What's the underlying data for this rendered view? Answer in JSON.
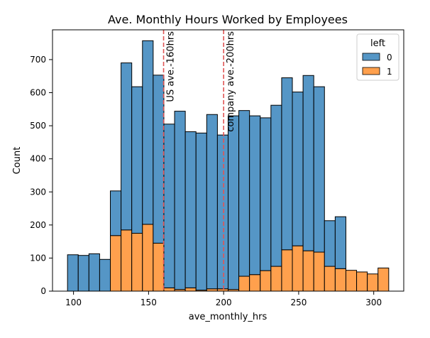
{
  "chart_data": {
    "type": "bar",
    "stacked": true,
    "title": "Ave. Monthly Hours Worked by Employees",
    "xlabel": "ave_monthly_hrs",
    "ylabel": "Count",
    "xlim": [
      86,
      320
    ],
    "ylim": [
      0,
      790
    ],
    "xticks": [
      100,
      150,
      200,
      250,
      300
    ],
    "yticks": [
      0,
      100,
      200,
      300,
      400,
      500,
      600,
      700
    ],
    "bin_start": 96,
    "bin_width": 7.133,
    "legend": {
      "title": "left",
      "placement": "upper-right",
      "entries": [
        {
          "label": "0",
          "color": "#5596c6"
        },
        {
          "label": "1",
          "color": "#ffa04d"
        }
      ]
    },
    "series": [
      {
        "name": "0",
        "color": "#5596c6",
        "values": [
          110,
          108,
          113,
          96,
          135,
          505,
          443,
          555,
          508,
          495,
          539,
          472,
          475,
          527,
          465,
          525,
          501,
          480,
          462,
          487,
          520,
          465,
          530,
          500,
          138,
          157,
          0,
          0,
          0,
          0
        ]
      },
      {
        "name": "1",
        "color": "#ffa04d",
        "values": [
          0,
          0,
          0,
          0,
          168,
          185,
          175,
          202,
          145,
          10,
          5,
          10,
          3,
          7,
          7,
          5,
          45,
          50,
          62,
          75,
          125,
          137,
          122,
          118,
          75,
          68,
          63,
          58,
          52,
          70
        ]
      }
    ],
    "annotations": [
      {
        "x": 160,
        "text": "US ave.-160hrs",
        "color": "#e05555"
      },
      {
        "x": 200,
        "text": "company ave.-200hrs",
        "color": "#e05555"
      }
    ]
  }
}
